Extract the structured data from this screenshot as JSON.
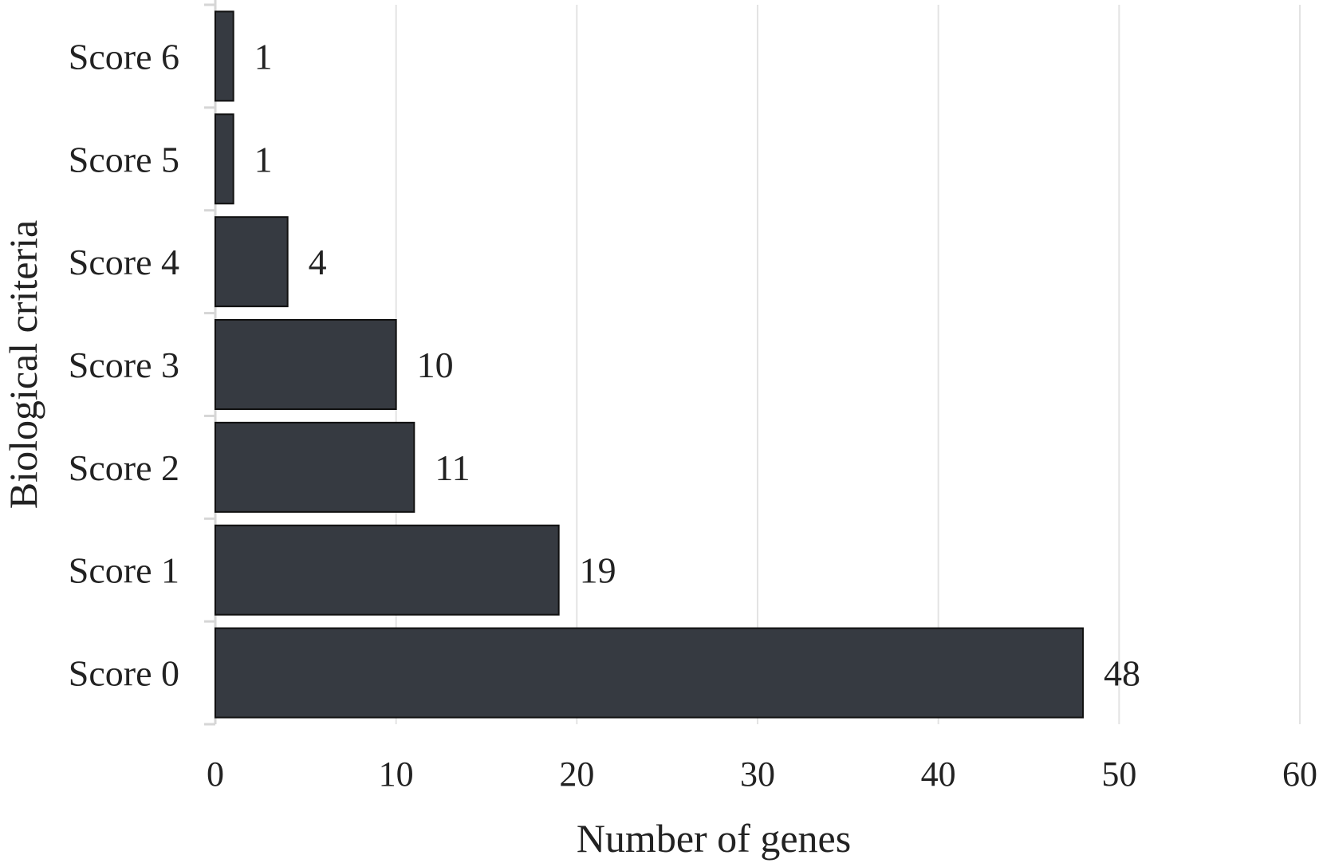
{
  "chart_data": {
    "type": "bar",
    "orientation": "horizontal",
    "categories": [
      "Score 6",
      "Score 5",
      "Score 4",
      "Score 3",
      "Score 2",
      "Score 1",
      "Score 0"
    ],
    "values": [
      1,
      1,
      4,
      10,
      11,
      19,
      48
    ],
    "data_labels": [
      "1",
      "1",
      "4",
      "10",
      "11",
      "19",
      "48"
    ],
    "xlabel": "Number of genes",
    "ylabel": "Biological criteria",
    "xlim": [
      0,
      60
    ],
    "xticks": [
      0,
      10,
      20,
      30,
      40,
      50,
      60
    ],
    "xtick_labels": [
      "0",
      "10",
      "20",
      "30",
      "40",
      "50",
      "60"
    ],
    "grid": "vertical",
    "legend": "none",
    "colors": {
      "bar": "#363a41",
      "bar_edge": "#111111",
      "grid": "#e3e3e3",
      "axis": "#d6d6d6"
    }
  }
}
